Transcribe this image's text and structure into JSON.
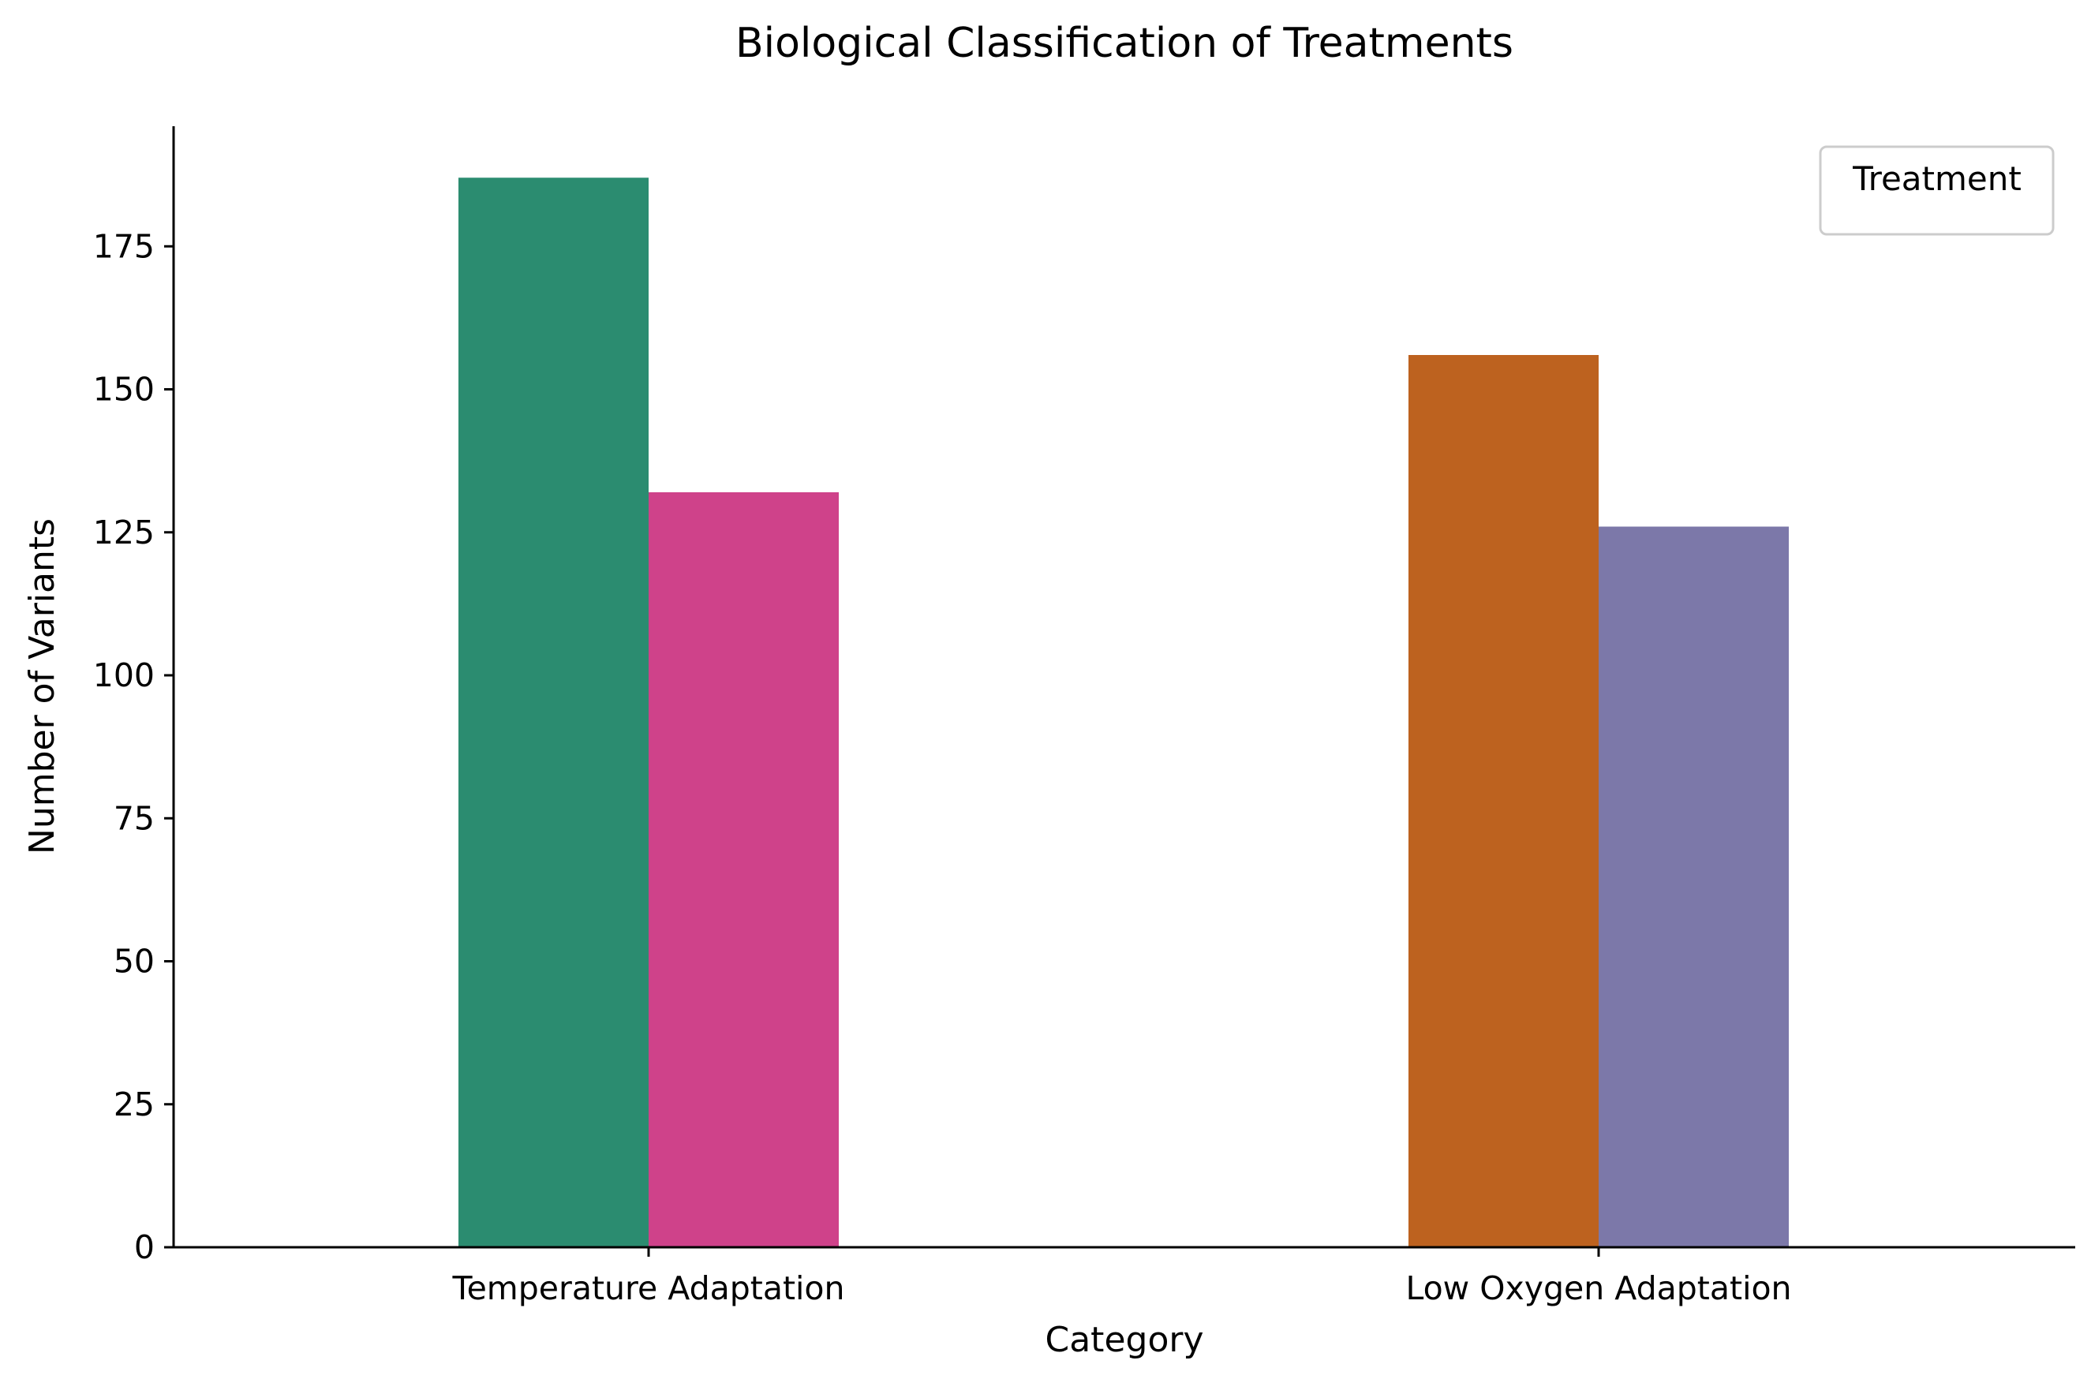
{
  "chart_data": {
    "type": "bar",
    "title": "Biological Classification of Treatments",
    "xlabel": "Category",
    "ylabel": "Number of Variants",
    "categories": [
      "Temperature Adaptation",
      "Low Oxygen Adaptation"
    ],
    "ylim": [
      0,
      196
    ],
    "yticks": [
      0,
      25,
      50,
      75,
      100,
      125,
      150,
      175
    ],
    "grid": false,
    "legend": {
      "title": "Treatment",
      "placement": "upper right",
      "entries": []
    },
    "bars": [
      {
        "category": "Temperature Adaptation",
        "slot": 0,
        "value": 187,
        "color": "#2b8c70"
      },
      {
        "category": "Temperature Adaptation",
        "slot": 1,
        "value": 132,
        "color": "#cf428a"
      },
      {
        "category": "Low Oxygen Adaptation",
        "slot": 0,
        "value": 156,
        "color": "#bd621f"
      },
      {
        "category": "Low Oxygen Adaptation",
        "slot": 1,
        "value": 126,
        "color": "#7c78a9"
      }
    ]
  }
}
